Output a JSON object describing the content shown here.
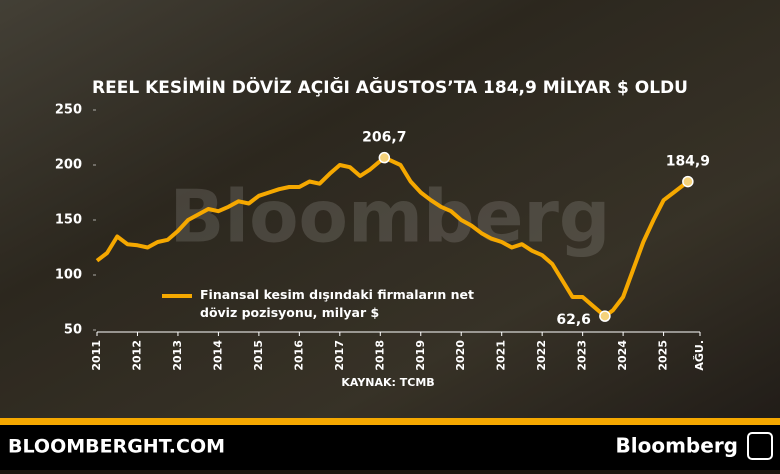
{
  "chart_data": {
    "type": "line",
    "title": "REEL KESİMİN DÖVİZ AÇIĞI AĞUSTOS’TA 184,9 MİLYAR $ OLDU",
    "source": "KAYNAK: TCMB",
    "watermark": "Bloomberg",
    "x": [
      2011.0,
      2011.25,
      2011.5,
      2011.75,
      2012.0,
      2012.25,
      2012.5,
      2012.75,
      2013.0,
      2013.25,
      2013.5,
      2013.75,
      2014.0,
      2014.25,
      2014.5,
      2014.75,
      2015.0,
      2015.25,
      2015.5,
      2015.75,
      2016.0,
      2016.25,
      2016.5,
      2016.75,
      2017.0,
      2017.25,
      2017.5,
      2017.75,
      2018.1,
      2018.5,
      2018.75,
      2019.0,
      2019.25,
      2019.5,
      2019.75,
      2020.0,
      2020.25,
      2020.5,
      2020.75,
      2021.0,
      2021.25,
      2021.5,
      2021.75,
      2022.0,
      2022.25,
      2022.5,
      2022.75,
      2023.0,
      2023.25,
      2023.55,
      2023.75,
      2024.0,
      2024.25,
      2024.5,
      2024.75,
      2025.0,
      2025.25,
      2025.6
    ],
    "series": [
      {
        "name": "Finansal kesim dışındaki firmaların net döviz pozisyonu, milyar $",
        "color": "#f5a800",
        "values": [
          113,
          120,
          135,
          128,
          127,
          125,
          130,
          132,
          140,
          150,
          155,
          160,
          158,
          162,
          167,
          165,
          172,
          175,
          178,
          180,
          180,
          185,
          183,
          192,
          200,
          198,
          190,
          196,
          206.7,
          200,
          185,
          175,
          168,
          162,
          158,
          150,
          145,
          138,
          133,
          130,
          125,
          128,
          122,
          118,
          110,
          95,
          80,
          80,
          72,
          62.6,
          68,
          80,
          105,
          130,
          150,
          168,
          175,
          184.9
        ],
        "value_labels": [
          null,
          null,
          null,
          null,
          null,
          null,
          null,
          null,
          null,
          null,
          null,
          null,
          null,
          null,
          null,
          null,
          null,
          null,
          null,
          null,
          null,
          null,
          null,
          null,
          null,
          null,
          null,
          null,
          "206,7",
          null,
          null,
          null,
          null,
          null,
          null,
          null,
          null,
          null,
          null,
          null,
          null,
          null,
          null,
          null,
          null,
          null,
          null,
          null,
          null,
          "62,6",
          null,
          null,
          null,
          null,
          null,
          null,
          null,
          "184,9"
        ]
      }
    ],
    "xlim": [
      2011,
      2025.9
    ],
    "xticks": [
      2011,
      2012,
      2013,
      2014,
      2015,
      2016,
      2017,
      2018,
      2019,
      2020,
      2021,
      2022,
      2023,
      2024,
      2025,
      {
        "value": 2025.9,
        "label": "AĞU."
      }
    ],
    "ylim": [
      50,
      250
    ],
    "yticks": [
      50,
      100,
      150,
      200,
      250
    ]
  },
  "footer": {
    "site": "BLOOMBERGHT.COM",
    "brand": "Bloomberg"
  }
}
